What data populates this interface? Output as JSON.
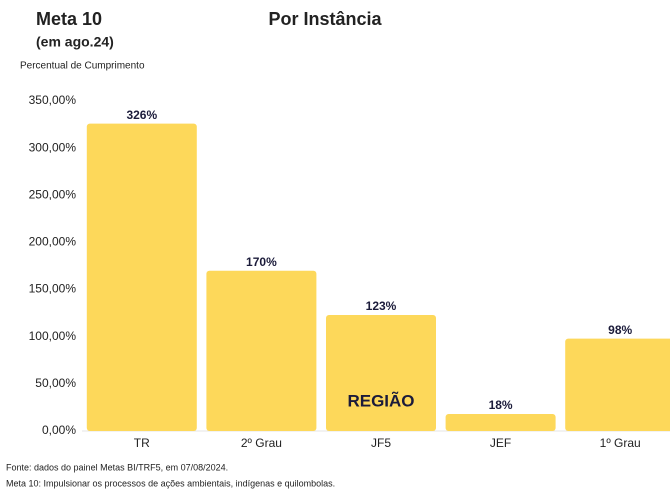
{
  "chart_data": {
    "type": "bar",
    "title": "Por Instância",
    "heading": "Meta 10",
    "subheading": "(em ago.24)",
    "y_label": "Percentual de Cumprimento",
    "categories": [
      "TR",
      "2º Grau",
      "JF5",
      "JEF",
      "1º Grau"
    ],
    "values": [
      326,
      170,
      123,
      18,
      98
    ],
    "value_labels": [
      "326%",
      "170%",
      "123%",
      "18%",
      "98%"
    ],
    "color": "#fdd85a",
    "ylim": [
      0,
      350
    ],
    "yticks": [
      {
        "value": 0,
        "label": "0,00%"
      },
      {
        "value": 50,
        "label": "50,00%"
      },
      {
        "value": 100,
        "label": "100,00%"
      },
      {
        "value": 150,
        "label": "150,00%"
      },
      {
        "value": 200,
        "label": "200,00%"
      },
      {
        "value": 250,
        "label": "250,00%"
      },
      {
        "value": 300,
        "label": "300,00%"
      },
      {
        "value": 350,
        "label": "350,00%"
      }
    ],
    "grid": false,
    "annotation": "REGIÃO",
    "notes": [
      "Fonte: dados  do painel Metas BI/TRF5, em 07/08/2024.",
      "Meta 10: Impulsionar os processos de ações ambientais, indígenas e quilombolas."
    ]
  }
}
